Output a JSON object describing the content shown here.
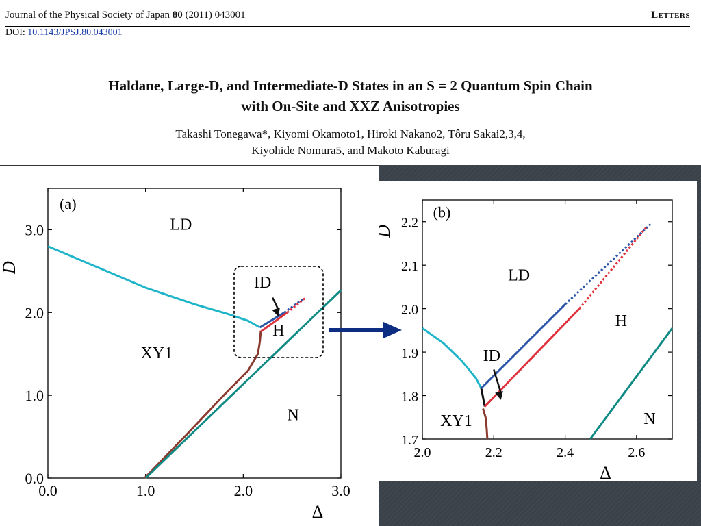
{
  "header": {
    "journal_prefix": "Journal of the Physical Society of Japan ",
    "volume": "80",
    "journal_suffix": " (2011) 043001",
    "section": "Letters"
  },
  "doi": {
    "label": "DOI: ",
    "value": "10.1143/JPSJ.80.043001"
  },
  "title": {
    "line1": "Haldane, Large-D, and Intermediate-D States in an S = 2 Quantum Spin Chain",
    "line2": "with On-Site and XXZ Anisotropies"
  },
  "authors": {
    "line1": "Takashi Tonegawa*, Kiyomi Okamoto1, Hiroki Nakano2, Tôru Sakai2,3,4,",
    "line2": "Kiyohide Nomura5, and Makoto Kaburagi"
  },
  "colors": {
    "cyan": "#1fb5c9",
    "blue": "#2c55a8",
    "red": "#e0323c",
    "brown": "#8b3a2f",
    "teal": "#0f8a84",
    "arrow": "#0c2d82"
  },
  "chart_data": [
    {
      "type": "line",
      "panel_label": "(a)",
      "xlabel": "Δ",
      "ylabel": "D",
      "xlim": [
        0.0,
        3.0
      ],
      "ylim": [
        0.0,
        3.5
      ],
      "xticks": [
        "0.0",
        "1.0",
        "2.0",
        "3.0"
      ],
      "yticks": [
        "0.0",
        "1.0",
        "2.0",
        "3.0"
      ],
      "region_labels": [
        "LD",
        "XY1",
        "H",
        "N",
        "ID"
      ],
      "series": [
        {
          "color": "cyan",
          "points": [
            [
              0.0,
              2.8
            ],
            [
              0.5,
              2.55
            ],
            [
              1.0,
              2.3
            ],
            [
              1.5,
              2.1
            ],
            [
              1.85,
              1.98
            ],
            [
              2.05,
              1.9
            ],
            [
              2.17,
              1.82
            ]
          ]
        },
        {
          "color": "brown",
          "points": [
            [
              0.99,
              0.0
            ],
            [
              1.4,
              0.5
            ],
            [
              1.8,
              1.0
            ],
            [
              2.05,
              1.3
            ],
            [
              2.15,
              1.5
            ],
            [
              2.17,
              1.65
            ],
            [
              2.18,
              1.78
            ]
          ]
        },
        {
          "color": "blue",
          "points": [
            [
              2.17,
              1.82
            ],
            [
              2.42,
              2.0
            ]
          ]
        },
        {
          "color": "red",
          "points": [
            [
              2.18,
              1.77
            ],
            [
              2.45,
              2.0
            ]
          ]
        },
        {
          "color": "blue",
          "dashed": true,
          "points": [
            [
              2.42,
              2.0
            ],
            [
              2.62,
              2.17
            ]
          ]
        },
        {
          "color": "red",
          "dashed": true,
          "points": [
            [
              2.45,
              2.0
            ],
            [
              2.63,
              2.17
            ]
          ]
        },
        {
          "color": "teal",
          "points": [
            [
              1.0,
              0.0
            ],
            [
              3.0,
              2.27
            ]
          ]
        }
      ]
    },
    {
      "type": "line",
      "panel_label": "(b)",
      "xlabel": "Δ",
      "ylabel": "D",
      "xlim": [
        2.0,
        2.7
      ],
      "ylim": [
        1.7,
        2.25
      ],
      "xticks": [
        "2.0",
        "2.2",
        "2.4",
        "2.6"
      ],
      "yticks": [
        "1.7",
        "1.8",
        "1.9",
        "2.0",
        "2.1",
        "2.2"
      ],
      "region_labels": [
        "LD",
        "XY1",
        "H",
        "N",
        "ID"
      ],
      "series": [
        {
          "color": "cyan",
          "points": [
            [
              2.0,
              1.955
            ],
            [
              2.06,
              1.92
            ],
            [
              2.11,
              1.88
            ],
            [
              2.15,
              1.84
            ],
            [
              2.165,
              1.817
            ]
          ]
        },
        {
          "color": "brown",
          "points": [
            [
              2.17,
              1.77
            ],
            [
              2.177,
              1.75
            ],
            [
              2.18,
              1.725
            ],
            [
              2.182,
              1.7
            ]
          ]
        },
        {
          "color": "black",
          "points": [
            [
              2.165,
              1.817
            ],
            [
              2.175,
              1.775
            ]
          ]
        },
        {
          "color": "blue",
          "points": [
            [
              2.165,
              1.817
            ],
            [
              2.4,
              2.01
            ]
          ]
        },
        {
          "color": "red",
          "points": [
            [
              2.175,
              1.775
            ],
            [
              2.44,
              2.0
            ]
          ]
        },
        {
          "color": "blue",
          "dashed": true,
          "points": [
            [
              2.4,
              2.01
            ],
            [
              2.64,
              2.195
            ]
          ]
        },
        {
          "color": "red",
          "dashed": true,
          "points": [
            [
              2.44,
              2.0
            ],
            [
              2.63,
              2.19
            ]
          ]
        },
        {
          "color": "teal",
          "points": [
            [
              2.47,
              1.7
            ],
            [
              2.7,
              1.955
            ]
          ]
        }
      ]
    }
  ]
}
